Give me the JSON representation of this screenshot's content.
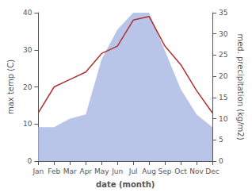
{
  "chart_data": {
    "type": "line",
    "xlabel": "date (month)",
    "ylabel": "max temp (C)",
    "y2label": "med. precipitation (kg/m2)",
    "categories": [
      "Jan",
      "Feb",
      "Mar",
      "Apr",
      "May",
      "Jun",
      "Jul",
      "Aug",
      "Sep",
      "Oct",
      "Nov",
      "Dec"
    ],
    "series": [
      {
        "type": "area",
        "axis": "y2",
        "color": "#b8c4e8",
        "values": [
          8,
          8,
          10,
          11,
          24,
          31,
          35,
          35,
          26,
          17,
          11,
          8
        ]
      },
      {
        "type": "line",
        "color": "#b03030",
        "values": [
          13,
          20,
          22,
          24,
          29,
          31,
          38,
          39,
          31,
          26,
          19,
          13
        ]
      }
    ],
    "ylim": [
      0,
      40
    ],
    "yticks": [
      0,
      10,
      20,
      30,
      40
    ],
    "y2lim": [
      0,
      35
    ],
    "y2ticks": [
      0,
      5,
      10,
      15,
      20,
      25,
      30,
      35
    ],
    "grid": false
  }
}
